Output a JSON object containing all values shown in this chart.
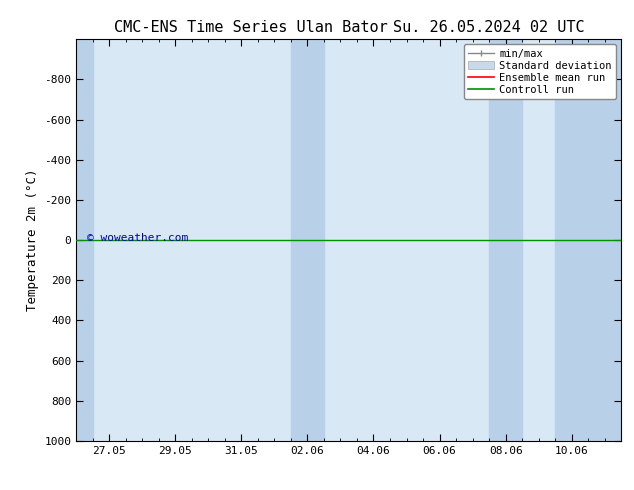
{
  "title_left": "CMC-ENS Time Series Ulan Bator",
  "title_right": "Su. 26.05.2024 02 UTC",
  "ylabel": "Temperature 2m (°C)",
  "ylim_bottom": 1000,
  "ylim_top": -1000,
  "yticks": [
    -800,
    -600,
    -400,
    -200,
    0,
    200,
    400,
    600,
    800,
    1000
  ],
  "xtick_labels": [
    "27.05",
    "29.05",
    "31.05",
    "02.06",
    "04.06",
    "06.06",
    "08.06",
    "10.06"
  ],
  "xtick_positions": [
    1,
    3,
    5,
    7,
    9,
    11,
    13,
    15
  ],
  "xlim": [
    0,
    16.5
  ],
  "background_color": "#ffffff",
  "plot_bg_color": "#d8e8f5",
  "shaded_band_color": "#b8d0e8",
  "control_run_color": "#009000",
  "ensemble_mean_color": "#ff0000",
  "watermark_text": "© woweather.com",
  "watermark_color": "#0000bb",
  "shaded_regions": [
    [
      0,
      0.5
    ],
    [
      6.5,
      7.5
    ],
    [
      12.5,
      13.5
    ],
    [
      14.5,
      16.5
    ]
  ],
  "control_run_y": 0.0,
  "title_fontsize": 11,
  "axis_fontsize": 9,
  "tick_fontsize": 8,
  "legend_fontsize": 7.5
}
